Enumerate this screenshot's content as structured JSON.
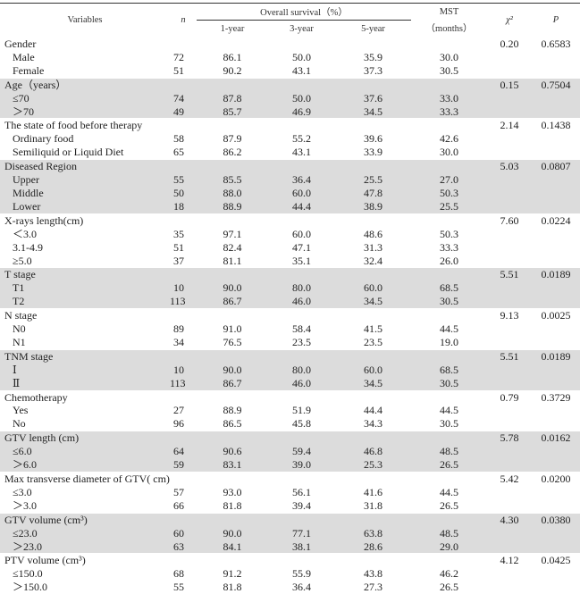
{
  "header": {
    "variables": "Variables",
    "n": "n",
    "overall_survival": "Overall survival（%）",
    "y1": "1-year",
    "y3": "3-year",
    "y5": "5-year",
    "mst": "MST",
    "mst_unit": "（months）",
    "chi": "χ²",
    "p": "P"
  },
  "groups": [
    {
      "label": "Gender",
      "chi": "0.20",
      "p": "0.6583",
      "shade": false,
      "rows": [
        [
          "Male",
          "72",
          "86.1",
          "50.0",
          "35.9",
          "30.0"
        ],
        [
          "Female",
          "51",
          "90.2",
          "43.1",
          "37.3",
          "30.5"
        ]
      ]
    },
    {
      "label": "Age（years）",
      "chi": "0.15",
      "p": "0.7504",
      "shade": true,
      "rows": [
        [
          "≤70",
          "74",
          "87.8",
          "50.0",
          "37.6",
          "33.0"
        ],
        [
          "＞70",
          "49",
          "85.7",
          "46.9",
          "34.5",
          "33.3"
        ]
      ]
    },
    {
      "label": "The state of food before therapy",
      "chi": "2.14",
      "p": "0.1438",
      "shade": false,
      "rows": [
        [
          "Ordinary food",
          "58",
          "87.9",
          "55.2",
          "39.6",
          "42.6"
        ],
        [
          "Semiliquid or Liquid Diet",
          "65",
          "86.2",
          "43.1",
          "33.9",
          "30.0"
        ]
      ]
    },
    {
      "label": "Diseased Region",
      "chi": "5.03",
      "p": "0.0807",
      "shade": true,
      "rows": [
        [
          "Upper",
          "55",
          "85.5",
          "36.4",
          "25.5",
          "27.0"
        ],
        [
          "Middle",
          "50",
          "88.0",
          "60.0",
          "47.8",
          "50.3"
        ],
        [
          "Lower",
          "18",
          "88.9",
          "44.4",
          "38.9",
          "25.5"
        ]
      ]
    },
    {
      "label": "X-rays length(cm)",
      "chi": "7.60",
      "p": "0.0224",
      "shade": false,
      "rows": [
        [
          "＜3.0",
          "35",
          "97.1",
          "60.0",
          "48.6",
          "50.3"
        ],
        [
          "3.1-4.9",
          "51",
          "82.4",
          "47.1",
          "31.3",
          "33.3"
        ],
        [
          "≥5.0",
          "37",
          "81.1",
          "35.1",
          "32.4",
          "26.0"
        ]
      ]
    },
    {
      "label": "T stage",
      "chi": "5.51",
      "p": "0.0189",
      "shade": true,
      "rows": [
        [
          "T1",
          "10",
          "90.0",
          "80.0",
          "60.0",
          "68.5"
        ],
        [
          "T2",
          "113",
          "86.7",
          "46.0",
          "34.5",
          "30.5"
        ]
      ]
    },
    {
      "label": "N stage",
      "chi": "9.13",
      "p": "0.0025",
      "shade": false,
      "rows": [
        [
          "N0",
          "89",
          "91.0",
          "58.4",
          "41.5",
          "44.5"
        ],
        [
          "N1",
          "34",
          "76.5",
          "23.5",
          "23.5",
          "19.0"
        ]
      ]
    },
    {
      "label": "TNM stage",
      "chi": "5.51",
      "p": "0.0189",
      "shade": true,
      "rows": [
        [
          "Ⅰ",
          "10",
          "90.0",
          "80.0",
          "60.0",
          "68.5"
        ],
        [
          "Ⅱ",
          "113",
          "86.7",
          "46.0",
          "34.5",
          "30.5"
        ]
      ]
    },
    {
      "label": "Chemotherapy",
      "chi": "0.79",
      "p": "0.3729",
      "shade": false,
      "rows": [
        [
          "Yes",
          "27",
          "88.9",
          "51.9",
          "44.4",
          "44.5"
        ],
        [
          "No",
          "96",
          "86.5",
          "45.8",
          "34.3",
          "30.5"
        ]
      ]
    },
    {
      "label": "GTV length (cm)",
      "chi": "5.78",
      "p": "0.0162",
      "shade": true,
      "rows": [
        [
          "≤6.0",
          "64",
          "90.6",
          "59.4",
          "46.8",
          "48.5"
        ],
        [
          "＞6.0",
          "59",
          "83.1",
          "39.0",
          "25.3",
          "26.5"
        ]
      ]
    },
    {
      "label": "Max transverse diameter of GTV( cm)",
      "chi": "5.42",
      "p": "0.0200",
      "shade": false,
      "rows": [
        [
          "≤3.0",
          "57",
          "93.0",
          "56.1",
          "41.6",
          "44.5"
        ],
        [
          "＞3.0",
          "66",
          "81.8",
          "39.4",
          "31.8",
          "26.5"
        ]
      ]
    },
    {
      "label": "GTV volume (cm³)",
      "chi": "4.30",
      "p": "0.0380",
      "shade": true,
      "rows": [
        [
          "≤23.0",
          "60",
          "90.0",
          "77.1",
          "63.8",
          "48.5"
        ],
        [
          "＞23.0",
          "63",
          "84.1",
          "38.1",
          "28.6",
          "29.0"
        ]
      ]
    },
    {
      "label": "PTV volume (cm³)",
      "chi": "4.12",
      "p": "0.0425",
      "shade": false,
      "rows": [
        [
          "≤150.0",
          "68",
          "91.2",
          "55.9",
          "43.8",
          "46.2"
        ],
        [
          "＞150.0",
          "55",
          "81.8",
          "36.4",
          "27.3",
          "26.5"
        ]
      ]
    }
  ]
}
